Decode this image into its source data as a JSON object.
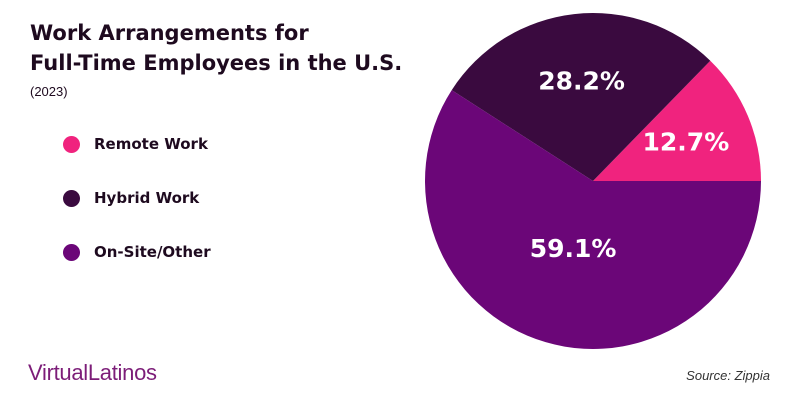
{
  "header": {
    "title_line1": "Work Arrangements for",
    "title_line2": "Full-Time Employees in the U.S.",
    "subtitle": "(2023)"
  },
  "chart_data": {
    "type": "pie",
    "title": "Work Arrangements for Full-Time Employees in the U.S.",
    "subtitle": "(2023)",
    "labels": [
      "Remote Work",
      "Hybrid Work",
      "On-Site/Other"
    ],
    "values": [
      12.7,
      28.2,
      59.1
    ],
    "value_labels": [
      "12.7%",
      "28.2%",
      "59.1%"
    ],
    "colors": [
      "#f0237e",
      "#3a0a3f",
      "#6b0678"
    ],
    "legend_placement": "left"
  },
  "footer": {
    "brand_prefix": "Virtual",
    "brand_suffix": "Latinos",
    "source": "Source: Zippia"
  }
}
